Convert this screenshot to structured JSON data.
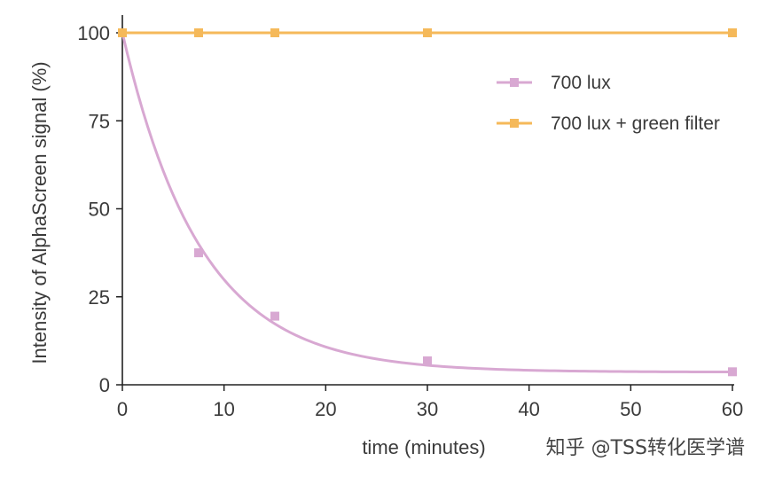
{
  "chart_data": {
    "type": "line",
    "xlabel": "time (minutes)",
    "ylabel": "Intensity of AlphaScreen signal (%)",
    "xlim": [
      0,
      60
    ],
    "ylim": [
      0,
      100
    ],
    "xticks": [
      "0",
      "10",
      "20",
      "30",
      "40",
      "50",
      "60"
    ],
    "yticks": [
      "0",
      "25",
      "50",
      "75",
      "100"
    ],
    "grid": false,
    "legend_position": "top-right",
    "series": [
      {
        "name": "700 lux",
        "color": "#d8a8d2",
        "marker": "square",
        "x": [
          7.5,
          15,
          30,
          60
        ],
        "y": [
          37.5,
          19.5,
          6.8,
          3.7
        ],
        "fit_curve": {
          "model": "exponential decay",
          "plateau": 3.6,
          "start": 100,
          "rate": 0.13
        }
      },
      {
        "name": "700 lux + green filter",
        "color": "#f5b95a",
        "marker": "square",
        "x": [
          0,
          7.5,
          15,
          30,
          60
        ],
        "y": [
          100,
          100,
          100,
          100,
          100
        ]
      }
    ]
  },
  "watermark": "知乎 @TSS转化医学谱"
}
